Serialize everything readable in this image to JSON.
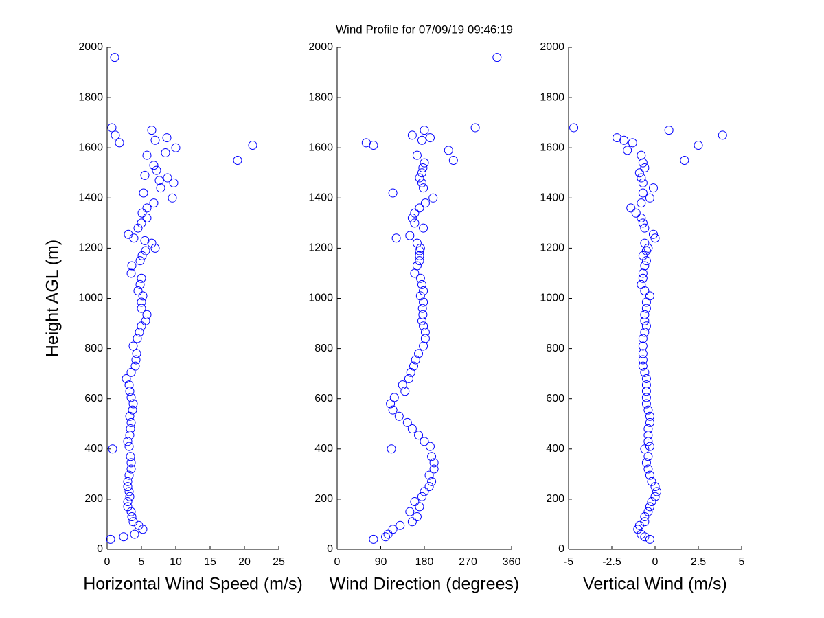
{
  "title": "Wind Profile for  07/09/19 09:46:19",
  "chart_data": [
    {
      "type": "scatter",
      "xlabel": "Horizontal Wind Speed (m/s)",
      "ylabel": "Height AGL (m)",
      "color": "#0000ff",
      "xlim": [
        0,
        25
      ],
      "xticks": [
        0,
        5,
        10,
        15,
        20,
        25
      ],
      "ylim": [
        0,
        2000
      ],
      "yticks": [
        0,
        200,
        400,
        600,
        800,
        1000,
        1200,
        1400,
        1600,
        1800,
        2000
      ],
      "x": [
        0.5,
        2.4,
        4.0,
        5.2,
        4.6,
        3.8,
        3.6,
        3.5,
        3.0,
        3.0,
        3.3,
        3.2,
        3.0,
        3.0,
        3.2,
        3.5,
        3.5,
        3.4,
        0.8,
        3.2,
        3.0,
        3.3,
        3.4,
        3.5,
        3.3,
        3.7,
        3.8,
        3.5,
        3.3,
        3.2,
        2.8,
        3.5,
        4.1,
        4.2,
        4.3,
        3.8,
        4.4,
        4.7,
        5.0,
        5.6,
        5.8,
        5.0,
        5.0,
        5.2,
        4.5,
        4.8,
        5.0,
        3.5,
        3.6,
        4.8,
        5.1,
        5.6,
        7.0,
        6.5,
        5.5,
        3.9,
        3.1,
        4.5,
        5.0,
        5.8,
        5.1,
        5.8,
        6.8,
        9.5,
        5.3,
        7.8,
        9.7,
        7.6,
        8.8,
        5.5,
        7.2,
        6.8,
        19.0,
        5.8,
        8.5,
        10.0,
        21.2,
        1.8,
        7.0,
        8.7,
        1.2,
        6.5,
        0.7,
        1.1
      ],
      "y": [
        40,
        50,
        60,
        80,
        95,
        110,
        130,
        150,
        170,
        190,
        210,
        230,
        250,
        270,
        295,
        320,
        345,
        370,
        400,
        410,
        430,
        455,
        480,
        505,
        530,
        555,
        580,
        605,
        630,
        655,
        680,
        705,
        730,
        755,
        780,
        810,
        840,
        865,
        890,
        910,
        935,
        960,
        985,
        1010,
        1030,
        1055,
        1080,
        1100,
        1130,
        1150,
        1170,
        1190,
        1200,
        1220,
        1230,
        1240,
        1255,
        1280,
        1300,
        1320,
        1340,
        1360,
        1380,
        1400,
        1420,
        1440,
        1460,
        1470,
        1480,
        1490,
        1510,
        1530,
        1550,
        1570,
        1580,
        1600,
        1610,
        1620,
        1630,
        1640,
        1650,
        1670,
        1680,
        1960
      ]
    },
    {
      "type": "scatter",
      "xlabel": "Wind Direction (degrees)",
      "color": "#0000ff",
      "xlim": [
        0,
        360
      ],
      "xticks": [
        0,
        90,
        180,
        270,
        360
      ],
      "ylim": [
        0,
        2000
      ],
      "yticks": [
        0,
        200,
        400,
        600,
        800,
        1000,
        1200,
        1400,
        1600,
        1800,
        2000
      ],
      "x": [
        75,
        100,
        105,
        115,
        130,
        155,
        165,
        150,
        170,
        160,
        175,
        180,
        190,
        195,
        190,
        200,
        200,
        195,
        112,
        192,
        180,
        168,
        155,
        145,
        128,
        115,
        110,
        118,
        140,
        135,
        148,
        152,
        158,
        162,
        168,
        178,
        182,
        182,
        178,
        175,
        177,
        176,
        178,
        172,
        178,
        175,
        172,
        160,
        165,
        170,
        170,
        170,
        172,
        165,
        122,
        150,
        178,
        160,
        155,
        160,
        170,
        182,
        198,
        115,
        178,
        175,
        170,
        175,
        177,
        180,
        240,
        165,
        230,
        75,
        60,
        175,
        192,
        155,
        180,
        285,
        330
      ],
      "y": [
        40,
        50,
        60,
        80,
        95,
        110,
        130,
        150,
        170,
        190,
        210,
        230,
        250,
        270,
        295,
        320,
        345,
        370,
        400,
        410,
        430,
        455,
        480,
        505,
        530,
        555,
        580,
        605,
        630,
        655,
        680,
        705,
        730,
        755,
        780,
        810,
        840,
        865,
        890,
        910,
        935,
        960,
        985,
        1010,
        1030,
        1055,
        1080,
        1100,
        1130,
        1150,
        1170,
        1190,
        1200,
        1220,
        1240,
        1250,
        1280,
        1300,
        1320,
        1340,
        1360,
        1380,
        1400,
        1420,
        1440,
        1460,
        1480,
        1500,
        1520,
        1540,
        1550,
        1570,
        1590,
        1610,
        1620,
        1630,
        1640,
        1650,
        1670,
        1680,
        1960
      ]
    },
    {
      "type": "scatter",
      "xlabel": "Vertical Wind (m/s)",
      "color": "#0000ff",
      "xlim": [
        -5,
        5
      ],
      "xticks": [
        -5,
        -2.5,
        0,
        2.5,
        5
      ],
      "ylim": [
        0,
        2000
      ],
      "yticks": [
        0,
        200,
        400,
        600,
        800,
        1000,
        1200,
        1400,
        1600,
        1800,
        2000
      ],
      "x": [
        -0.3,
        -0.6,
        -0.8,
        -1.0,
        -0.9,
        -0.6,
        -0.6,
        -0.4,
        -0.3,
        -0.2,
        0.0,
        0.1,
        0.0,
        -0.2,
        -0.3,
        -0.4,
        -0.5,
        -0.4,
        -0.6,
        -0.3,
        -0.4,
        -0.4,
        -0.4,
        -0.3,
        -0.3,
        -0.4,
        -0.5,
        -0.5,
        -0.5,
        -0.5,
        -0.5,
        -0.6,
        -0.7,
        -0.7,
        -0.7,
        -0.7,
        -0.7,
        -0.6,
        -0.5,
        -0.6,
        -0.6,
        -0.5,
        -0.5,
        -0.3,
        -0.6,
        -0.8,
        -0.7,
        -0.7,
        -0.6,
        -0.5,
        -0.7,
        -0.5,
        -0.4,
        -0.6,
        0.0,
        -0.1,
        -0.6,
        -0.7,
        -0.8,
        -1.1,
        -1.4,
        -0.8,
        -0.3,
        -0.7,
        -0.1,
        -0.7,
        -0.8,
        -0.9,
        -0.6,
        -0.7,
        1.7,
        -0.8,
        -1.6,
        2.5,
        -1.3,
        -1.8,
        -2.2,
        3.9,
        0.8,
        -4.7
      ],
      "y": [
        40,
        50,
        60,
        80,
        95,
        110,
        130,
        150,
        170,
        190,
        210,
        230,
        250,
        270,
        295,
        320,
        345,
        370,
        400,
        410,
        430,
        455,
        480,
        505,
        530,
        555,
        580,
        605,
        630,
        655,
        680,
        705,
        730,
        755,
        780,
        810,
        840,
        865,
        890,
        910,
        935,
        960,
        985,
        1010,
        1030,
        1055,
        1080,
        1100,
        1130,
        1150,
        1170,
        1190,
        1200,
        1220,
        1240,
        1255,
        1280,
        1300,
        1320,
        1340,
        1360,
        1380,
        1400,
        1420,
        1440,
        1460,
        1480,
        1500,
        1520,
        1540,
        1550,
        1570,
        1590,
        1610,
        1620,
        1630,
        1640,
        1650,
        1670,
        1680
      ]
    }
  ]
}
